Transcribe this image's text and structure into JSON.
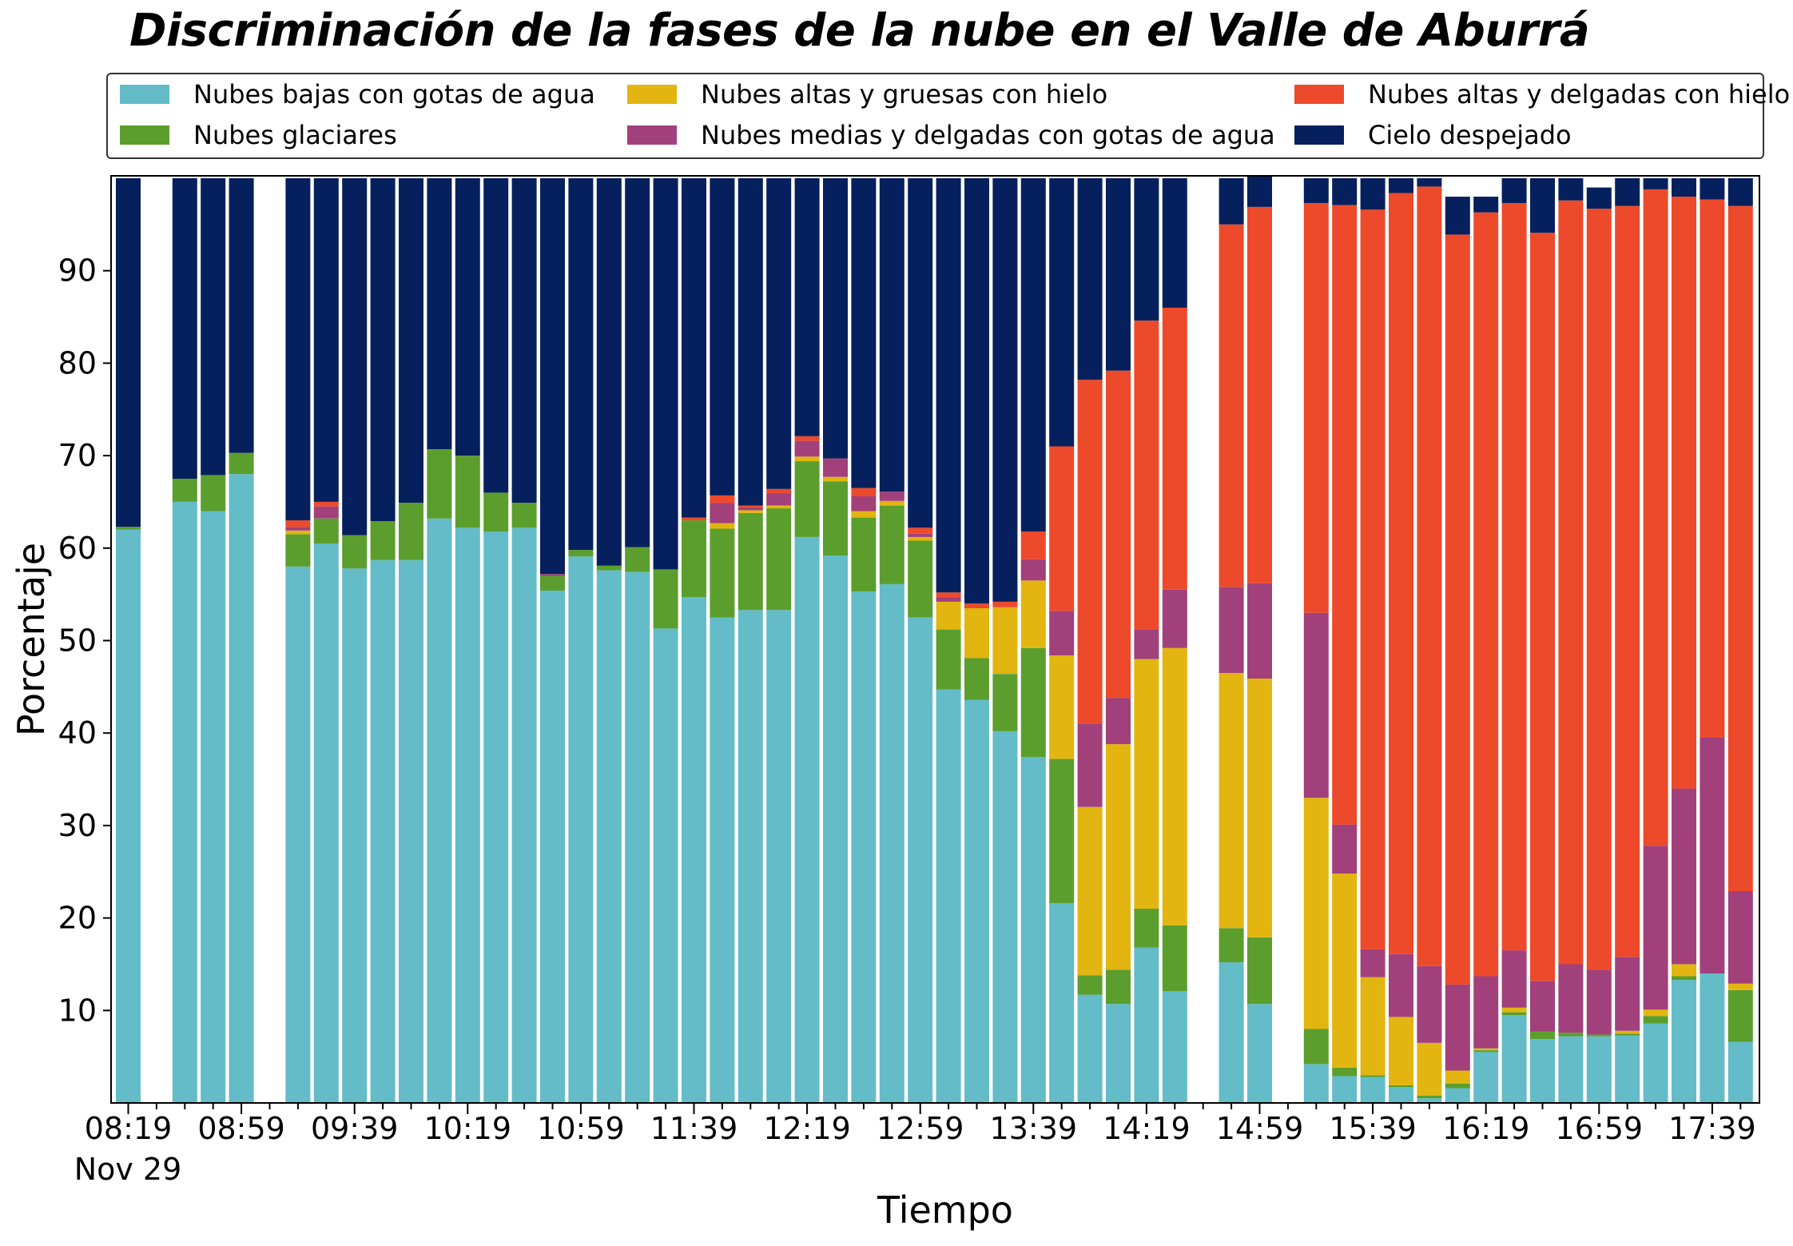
{
  "chart_data": {
    "type": "bar",
    "stacked": true,
    "title": "Discriminación de la fases de la nube en el Valle de Aburrá",
    "xlabel": "Tiempo",
    "ylabel": "Porcentaje",
    "ylim": [
      0,
      100
    ],
    "yticks": [
      10,
      20,
      30,
      40,
      50,
      60,
      70,
      80,
      90
    ],
    "x_tick_labels": [
      "08:19",
      "08:59",
      "09:39",
      "10:19",
      "10:59",
      "11:39",
      "12:19",
      "12:59",
      "13:39",
      "14:19",
      "14:59",
      "15:39",
      "16:19",
      "16:59",
      "17:39"
    ],
    "x_date_label": "Nov 29",
    "grid": false,
    "legend_placement": "top",
    "categories": [
      "08:19",
      "08:29",
      "08:39",
      "08:49",
      "08:59",
      "09:09",
      "09:19",
      "09:29",
      "09:39",
      "09:49",
      "09:59",
      "10:09",
      "10:19",
      "10:29",
      "10:39",
      "10:49",
      "10:59",
      "11:09",
      "11:19",
      "11:29",
      "11:39",
      "11:49",
      "11:59",
      "12:09",
      "12:19",
      "12:29",
      "12:39",
      "12:49",
      "12:59",
      "13:09",
      "13:19",
      "13:29",
      "13:39",
      "13:49",
      "13:59",
      "14:09",
      "14:19",
      "14:29",
      "14:39",
      "14:49",
      "14:59",
      "15:09",
      "15:19",
      "15:29",
      "15:39",
      "15:49",
      "15:59",
      "16:09",
      "16:19",
      "16:29",
      "16:39",
      "16:49",
      "16:59",
      "17:09",
      "17:19",
      "17:29",
      "17:39",
      "17:49"
    ],
    "series": [
      {
        "name": "Nubes bajas con gotas de agua",
        "color": "#63bcc8",
        "values": [
          62,
          null,
          65,
          64,
          68,
          null,
          58,
          60.5,
          57.8,
          58.7,
          58.7,
          63.2,
          62.2,
          61.8,
          62.2,
          55.4,
          59.1,
          57.6,
          57.4,
          51.3,
          54.7,
          52.5,
          53.3,
          53.3,
          61.2,
          59.2,
          55.3,
          56.1,
          52.5,
          44.7,
          43.6,
          40.2,
          37.4,
          21.6,
          11.7,
          10.7,
          16.8,
          12.1,
          null,
          15.2,
          10.7,
          null,
          4.2,
          2.9,
          2.8,
          1.7,
          0.5,
          1.6,
          5.5,
          9.5,
          6.9,
          7.2,
          7.2,
          7.3,
          8.6,
          13.3,
          14.0,
          6.6
        ]
      },
      {
        "name": "Nubes glaciares",
        "color": "#5b9e2d",
        "values": [
          0.3,
          null,
          2.5,
          3.9,
          2.3,
          null,
          3.5,
          2.7,
          3.6,
          4.2,
          6.2,
          7.5,
          7.8,
          4.2,
          2.7,
          1.6,
          0.7,
          0.5,
          2.7,
          6.4,
          8.3,
          9.6,
          10.5,
          11.0,
          8.2,
          8.0,
          8.0,
          8.5,
          8.3,
          6.5,
          4.5,
          6.2,
          11.8,
          15.6,
          2.1,
          3.7,
          4.2,
          7.1,
          null,
          3.7,
          7.2,
          null,
          3.8,
          0.9,
          0.2,
          0.2,
          0.3,
          0.5,
          0.2,
          0.3,
          0.8,
          0.4,
          0.2,
          0.2,
          0.8,
          0.4,
          0,
          5.6
        ]
      },
      {
        "name": "Nubes altas y gruesas con hielo",
        "color": "#e2b511",
        "values": [
          0,
          null,
          0,
          0,
          0,
          null,
          0.4,
          0,
          0,
          0,
          0,
          0,
          0,
          0,
          0,
          0,
          0,
          0,
          0,
          0,
          0,
          0.6,
          0.3,
          0.3,
          0.5,
          0.5,
          0.7,
          0.5,
          0.4,
          3.0,
          5.4,
          7.2,
          7.3,
          11.2,
          18.2,
          24.4,
          27.0,
          30.0,
          null,
          27.6,
          28.0,
          null,
          25.0,
          21.0,
          10.6,
          7.4,
          5.7,
          1.4,
          0.2,
          0.5,
          0,
          0,
          0,
          0.3,
          0.7,
          1.3,
          0,
          0.7
        ]
      },
      {
        "name": "Nubes medias y delgadas con gotas de agua",
        "color": "#a1407b",
        "values": [
          0,
          null,
          0,
          0,
          0,
          null,
          0.4,
          1.3,
          0,
          0,
          0,
          0,
          0,
          0,
          0,
          0.2,
          0,
          0,
          0,
          0,
          0,
          2.2,
          0.3,
          1.3,
          1.7,
          2.0,
          1.6,
          1.0,
          0.4,
          0.5,
          0,
          0,
          2.3,
          4.8,
          9.0,
          5.0,
          3.2,
          6.3,
          null,
          9.3,
          10.3,
          null,
          20.0,
          5.3,
          3.0,
          6.8,
          8.3,
          9.3,
          7.8,
          6.2,
          5.5,
          7.4,
          7.0,
          8.0,
          17.7,
          19.0,
          25.5,
          10.0
        ]
      },
      {
        "name": "Nubes altas y delgadas con hielo",
        "color": "#ed4a2b",
        "values": [
          0,
          null,
          0,
          0,
          0,
          null,
          0.7,
          0.5,
          0,
          0,
          0,
          0,
          0,
          0,
          0,
          0,
          0,
          0,
          0,
          0,
          0.3,
          0.8,
          0.2,
          0.5,
          0.5,
          0,
          0.9,
          0,
          0.6,
          0.5,
          0.5,
          0.6,
          3.0,
          17.8,
          37.2,
          35.4,
          33.4,
          30.5,
          null,
          39.2,
          40.7,
          null,
          44.3,
          67.0,
          80.0,
          82.3,
          84.3,
          81.1,
          82.6,
          80.8,
          80.9,
          82.6,
          82.3,
          81.2,
          71.0,
          64.0,
          58.2,
          74.1
        ]
      },
      {
        "name": "Cielo despejado",
        "color": "#06205d",
        "values": [
          37.7,
          null,
          32.5,
          32.1,
          29.7,
          null,
          37,
          35,
          38.6,
          37.1,
          35.1,
          29.3,
          30,
          34,
          35.1,
          42.8,
          40.2,
          41.9,
          39.9,
          42.3,
          36.7,
          34.3,
          35.4,
          33.6,
          27.9,
          30.3,
          33.5,
          33.9,
          37.8,
          44.8,
          46,
          45.8,
          38.2,
          29,
          21.8,
          20.8,
          15.4,
          14,
          null,
          5,
          3.3,
          null,
          2.7,
          2.9,
          3.4,
          1.6,
          0.9,
          4.1,
          1.7,
          2.7,
          5.9,
          2.4,
          2.3,
          3.0,
          1.2,
          2.0,
          2.3,
          3.0
        ]
      }
    ]
  }
}
